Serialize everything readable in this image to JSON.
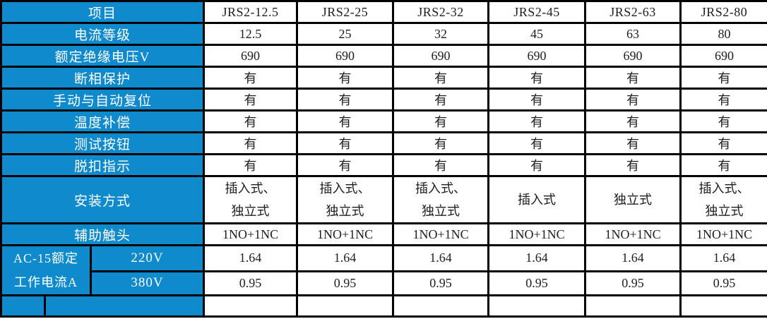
{
  "colors": {
    "header_blue": "#0E8ACD",
    "border_black": "#000000",
    "header_text": "#ffffff",
    "cell_text": "#1e1e1e",
    "cell_bg": "#ffffff"
  },
  "table": {
    "header": {
      "item_label": "项目",
      "models": [
        "JRS2-12.5",
        "JRS2-25",
        "JRS2-32",
        "JRS2-45",
        "JRS2-63",
        "JRS2-80"
      ]
    },
    "rows": [
      {
        "key": "current-grade",
        "label": "电流等级",
        "values": [
          "12.5",
          "25",
          "32",
          "45",
          "63",
          "80"
        ]
      },
      {
        "key": "insulation-voltage",
        "label": "额定绝缘电压V",
        "values": [
          "690",
          "690",
          "690",
          "690",
          "690",
          "690"
        ]
      },
      {
        "key": "phase-protection",
        "label": "断相保护",
        "values": [
          "有",
          "有",
          "有",
          "有",
          "有",
          "有"
        ]
      },
      {
        "key": "manual-auto-reset",
        "label": "手动与自动复位",
        "values": [
          "有",
          "有",
          "有",
          "有",
          "有",
          "有"
        ]
      },
      {
        "key": "temp-compensation",
        "label": "温度补偿",
        "values": [
          "有",
          "有",
          "有",
          "有",
          "有",
          "有"
        ]
      },
      {
        "key": "test-button",
        "label": "测试按钮",
        "values": [
          "有",
          "有",
          "有",
          "有",
          "有",
          "有"
        ]
      },
      {
        "key": "trip-indication",
        "label": "脱扣指示",
        "values": [
          "有",
          "有",
          "有",
          "有",
          "有",
          "有"
        ]
      },
      {
        "key": "mounting-method",
        "label": "安装方式",
        "multiline": true,
        "values": [
          "插入式、\n独立式",
          "插入式、\n独立式",
          "插入式、\n独立式",
          "插入式",
          "独立式",
          "插入式、\n独立式"
        ]
      },
      {
        "key": "auxiliary-contacts",
        "label": "辅助触头",
        "values": [
          "1NO+1NC",
          "1NO+1NC",
          "1NO+1NC",
          "1NO+1NC",
          "1NO+1NC",
          "1NO+1NC"
        ]
      }
    ],
    "group": {
      "label": "AC-15额定\n工作电流A",
      "subrows": [
        {
          "key": "ac15-220v",
          "label": "220V",
          "values": [
            "1.64",
            "1.64",
            "1.64",
            "1.64",
            "1.64",
            "1.64"
          ]
        },
        {
          "key": "ac15-380v",
          "label": "380V",
          "values": [
            "0.95",
            "0.95",
            "0.95",
            "0.95",
            "0.95",
            "0.95"
          ]
        }
      ]
    }
  }
}
